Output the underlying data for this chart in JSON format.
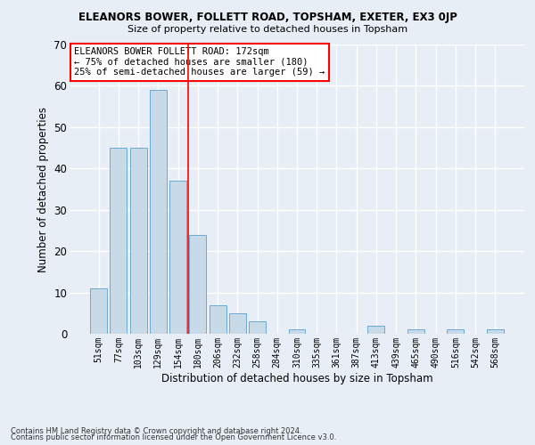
{
  "title": "ELEANORS BOWER, FOLLETT ROAD, TOPSHAM, EXETER, EX3 0JP",
  "subtitle": "Size of property relative to detached houses in Topsham",
  "xlabel": "Distribution of detached houses by size in Topsham",
  "ylabel": "Number of detached properties",
  "bar_color": "#c8d9e8",
  "bar_edge_color": "#6aaad4",
  "categories": [
    "51sqm",
    "77sqm",
    "103sqm",
    "129sqm",
    "154sqm",
    "180sqm",
    "206sqm",
    "232sqm",
    "258sqm",
    "284sqm",
    "310sqm",
    "335sqm",
    "361sqm",
    "387sqm",
    "413sqm",
    "439sqm",
    "465sqm",
    "490sqm",
    "516sqm",
    "542sqm",
    "568sqm"
  ],
  "values": [
    11,
    45,
    45,
    59,
    37,
    24,
    7,
    5,
    3,
    0,
    1,
    0,
    0,
    0,
    2,
    0,
    1,
    0,
    1,
    0,
    1
  ],
  "ylim": [
    0,
    70
  ],
  "yticks": [
    0,
    10,
    20,
    30,
    40,
    50,
    60,
    70
  ],
  "vline_x": 4.5,
  "annotation_text": "ELEANORS BOWER FOLLETT ROAD: 172sqm\n← 75% of detached houses are smaller (180)\n25% of semi-detached houses are larger (59) →",
  "footnote1": "Contains HM Land Registry data © Crown copyright and database right 2024.",
  "footnote2": "Contains public sector information licensed under the Open Government Licence v3.0.",
  "background_color": "#e8eef5",
  "grid_color": "#ffffff"
}
